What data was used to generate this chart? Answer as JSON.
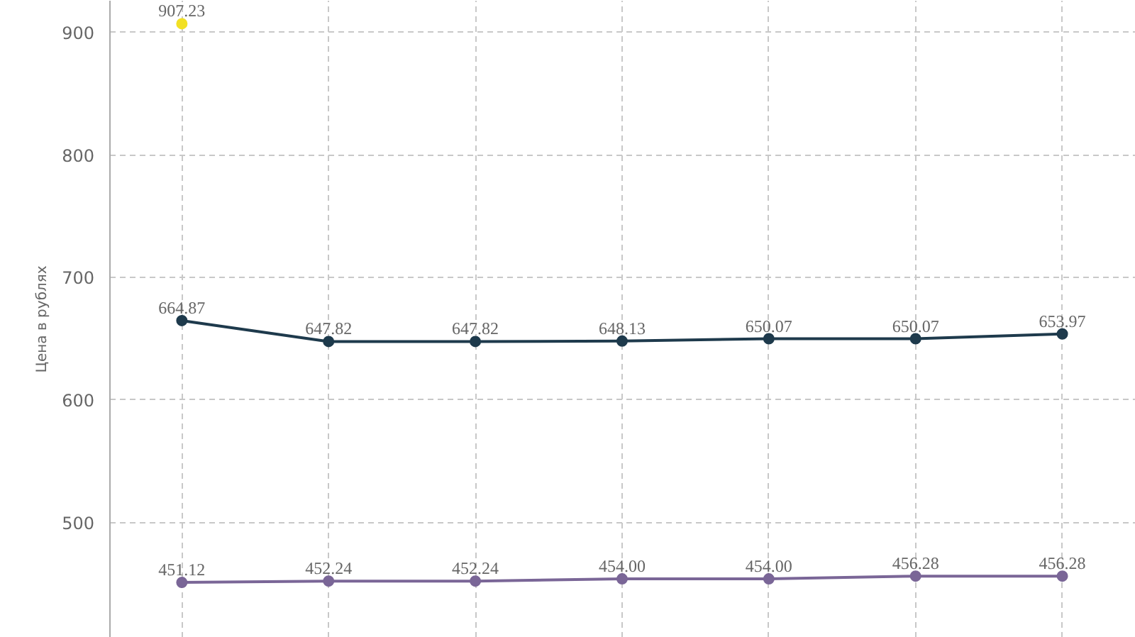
{
  "chart_data": {
    "type": "line",
    "ylabel": "Цена в рублях",
    "categories": [
      null,
      null,
      null,
      null,
      null,
      null,
      null
    ],
    "series": [
      {
        "color": "#f2e024",
        "values": [
          907.23,
          null,
          null,
          null,
          null,
          null,
          null
        ],
        "value_labels": [
          "907.23",
          null,
          null,
          null,
          null,
          null,
          null
        ]
      },
      {
        "color": "#1e3a4c",
        "values": [
          664.87,
          647.82,
          647.82,
          648.13,
          650.07,
          650.07,
          653.97
        ],
        "value_labels": [
          "664.87",
          "647.82",
          "647.82",
          "648.13",
          "650.07",
          "650.07",
          "653.97"
        ]
      },
      {
        "color": "#7a6697",
        "values": [
          451.12,
          452.24,
          452.24,
          454.0,
          454.0,
          456.28,
          456.28
        ],
        "value_labels": [
          "451.12",
          "452.24",
          "452.24",
          "454.00",
          "454.00",
          "456.28",
          "456.28"
        ]
      }
    ],
    "ylim": [
      406,
      926
    ],
    "yticks": [
      500,
      600,
      700,
      800,
      900
    ],
    "grid": true,
    "marker": "circle",
    "line_style": "solid",
    "tick_labels": "y"
  }
}
